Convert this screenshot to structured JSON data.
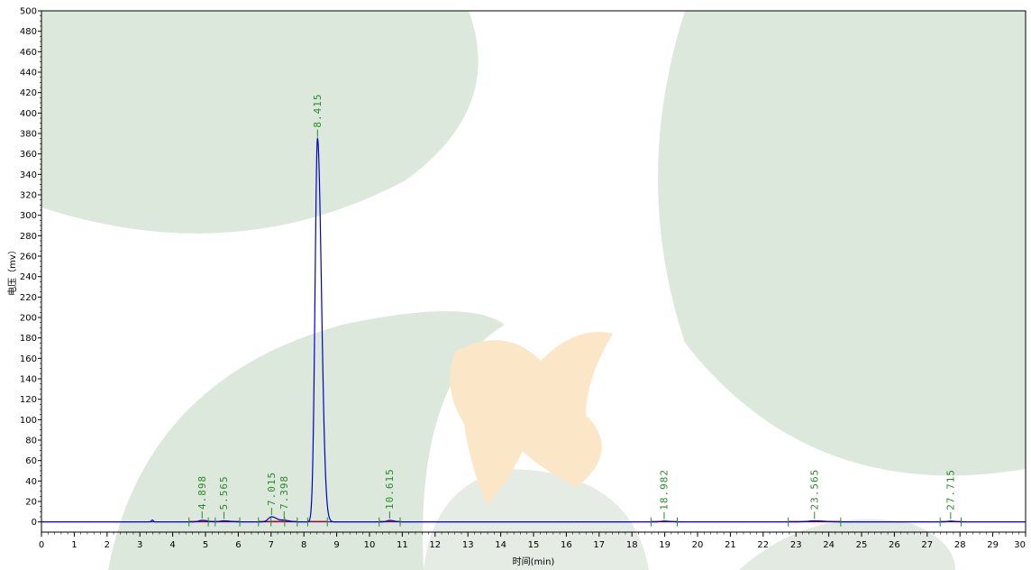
{
  "chart_data": {
    "type": "line",
    "title": "",
    "xlabel": "时间(min)",
    "ylabel": "电压（mv）",
    "xlim": [
      0,
      30
    ],
    "ylim": [
      -10,
      500
    ],
    "x_ticks": [
      0,
      1,
      2,
      3,
      4,
      5,
      6,
      7,
      8,
      9,
      10,
      11,
      12,
      13,
      14,
      15,
      16,
      17,
      18,
      19,
      20,
      21,
      22,
      23,
      24,
      25,
      26,
      27,
      28,
      29,
      30
    ],
    "y_ticks": [
      0,
      20,
      40,
      60,
      80,
      100,
      120,
      140,
      160,
      180,
      200,
      220,
      240,
      260,
      280,
      300,
      320,
      340,
      360,
      380,
      400,
      420,
      440,
      460,
      480,
      500
    ],
    "grid": false,
    "legend": "none",
    "series": [
      {
        "color": "#0000cc",
        "peaks": [
          {
            "rt": 4.898,
            "height": 1.5,
            "width": 0.1
          },
          {
            "rt": 5.565,
            "height": 1.0,
            "width": 0.12
          },
          {
            "rt": 7.015,
            "height": 5,
            "width": 0.1
          },
          {
            "rt": 7.398,
            "height": 1.5,
            "width": 0.1
          },
          {
            "rt": 8.415,
            "height": 375,
            "width": 0.075
          },
          {
            "rt": 10.615,
            "height": 1.5,
            "width": 0.08
          },
          {
            "rt": 18.982,
            "height": 0.8,
            "width": 0.1
          },
          {
            "rt": 23.565,
            "height": 1.0,
            "width": 0.2
          },
          {
            "rt": 27.715,
            "height": 0.8,
            "width": 0.08
          }
        ]
      }
    ],
    "peak_labels": [
      "4.898",
      "5.565",
      "7.015",
      "7.398",
      "8.415",
      "10.615",
      "18.982",
      "23.565",
      "27.715"
    ],
    "peak_marker_color": "#2a8a2a",
    "baseline_color": "#cc0000",
    "zero_line_color": "#0000cc"
  }
}
